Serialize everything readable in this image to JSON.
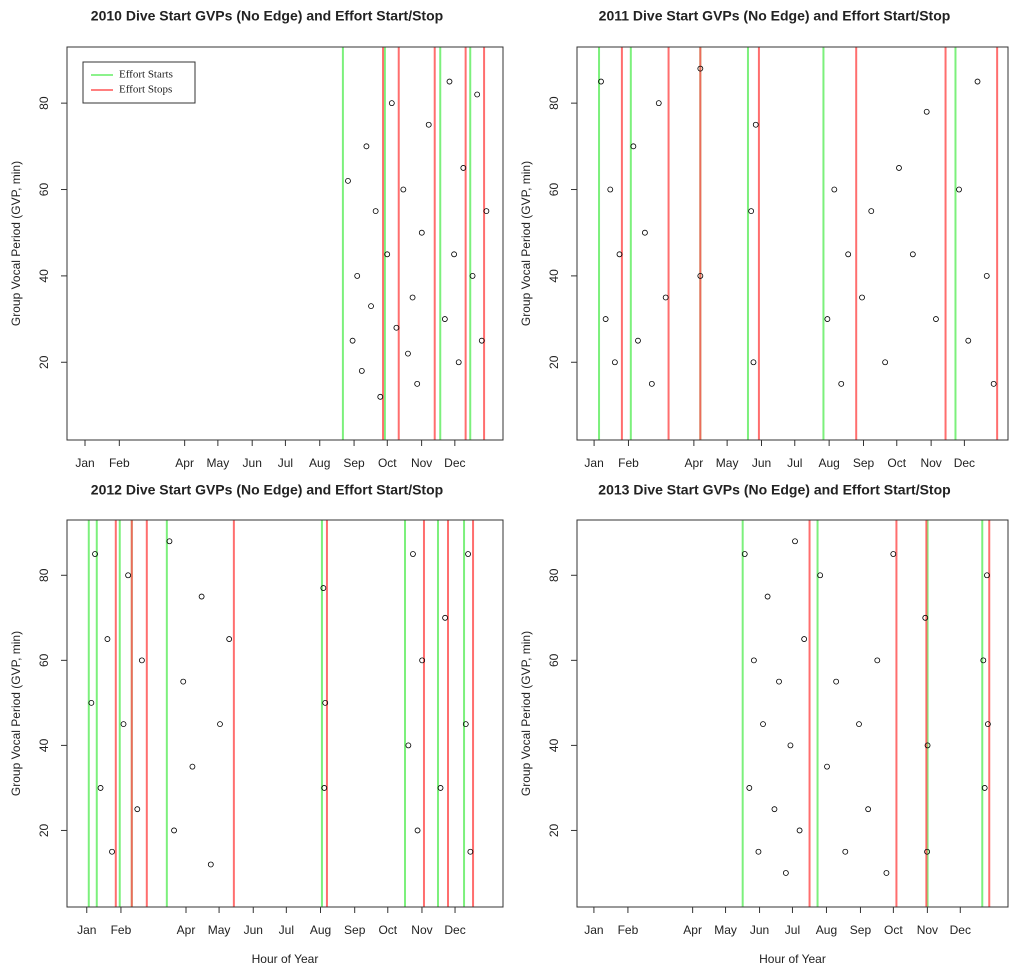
{
  "chart_data": [
    {
      "type": "scatter",
      "title": "2010 Dive Start GVPs (No Edge) and Effort Start/Stop",
      "y_label": "Group Vocal Period (GVP, min)",
      "xlim": [
        -390,
        9060
      ],
      "ylim": [
        2,
        93
      ],
      "xticks": [
        {
          "value": 0,
          "label": "Jan"
        },
        {
          "value": 744,
          "label": "Feb"
        },
        {
          "value": 2160,
          "label": "Apr"
        },
        {
          "value": 2880,
          "label": "May"
        },
        {
          "value": 3624,
          "label": "Jun"
        },
        {
          "value": 4344,
          "label": "Jul"
        },
        {
          "value": 5088,
          "label": "Aug"
        },
        {
          "value": 5832,
          "label": "Sep"
        },
        {
          "value": 6552,
          "label": "Oct"
        },
        {
          "value": 7296,
          "label": "Nov"
        },
        {
          "value": 8016,
          "label": "Dec"
        }
      ],
      "yticks": [
        20,
        40,
        60,
        80
      ],
      "legend": "top-left",
      "vlines": [
        {
          "name": "Effort Starts",
          "color": "#66ee66",
          "x": [
            5590,
            6500,
            7700,
            8350
          ]
        },
        {
          "name": "Effort Stops",
          "color": "#ff5555",
          "x": [
            6460,
            6800,
            7580,
            8250,
            8650
          ]
        }
      ],
      "points": {
        "color": "#000000",
        "x": [
          5700,
          5800,
          5900,
          6000,
          6100,
          6200,
          6300,
          6400,
          6550,
          6650,
          6750,
          6900,
          7000,
          7100,
          7200,
          7300,
          7450,
          7800,
          7900,
          8000,
          8100,
          8200,
          8400,
          8500,
          8600,
          8700
        ],
        "y": [
          62,
          25,
          40,
          18,
          70,
          33,
          55,
          12,
          45,
          80,
          28,
          60,
          22,
          35,
          15,
          50,
          75,
          30,
          85,
          45,
          20,
          65,
          40,
          82,
          25,
          55
        ]
      }
    },
    {
      "type": "scatter",
      "title": "2011 Dive Start GVPs (No Edge) and Effort Start/Stop",
      "y_label": "Group Vocal Period (GVP, min)",
      "xlim": [
        -370,
        8960
      ],
      "ylim": [
        2,
        93
      ],
      "xticks": [
        {
          "value": 0,
          "label": "Jan"
        },
        {
          "value": 744,
          "label": "Feb"
        },
        {
          "value": 2160,
          "label": "Apr"
        },
        {
          "value": 2880,
          "label": "May"
        },
        {
          "value": 3624,
          "label": "Jun"
        },
        {
          "value": 4344,
          "label": "Jul"
        },
        {
          "value": 5088,
          "label": "Aug"
        },
        {
          "value": 5832,
          "label": "Sep"
        },
        {
          "value": 6552,
          "label": "Oct"
        },
        {
          "value": 7296,
          "label": "Nov"
        },
        {
          "value": 8016,
          "label": "Dec"
        }
      ],
      "yticks": [
        20,
        40,
        60,
        80
      ],
      "vlines": [
        {
          "color": "#66ee66",
          "x": [
            107,
            795,
            2300,
            3331,
            4965,
            7823
          ]
        },
        {
          "color": "#ff5555",
          "x": [
            602,
            1612,
            2300,
            3568,
            5674,
            7608,
            8725
          ]
        }
      ],
      "points": {
        "color": "#000000",
        "x": [
          150,
          250,
          350,
          450,
          550,
          850,
          950,
          1100,
          1250,
          1400,
          1550,
          2300,
          2300,
          3400,
          3450,
          3500,
          5050,
          5200,
          5350,
          5500,
          5800,
          6000,
          6300,
          6600,
          6900,
          7200,
          7400,
          7900,
          8100,
          8300,
          8500,
          8650
        ],
        "y": [
          85,
          30,
          60,
          20,
          45,
          70,
          25,
          50,
          15,
          80,
          35,
          40,
          88,
          55,
          20,
          75,
          30,
          60,
          15,
          45,
          35,
          55,
          20,
          65,
          45,
          78,
          30,
          60,
          25,
          85,
          40,
          15
        ]
      }
    },
    {
      "type": "scatter",
      "title": "2012 Dive Start GVPs (No Edge) and Effort Start/Stop",
      "y_label": "Group Vocal Period (GVP, min)",
      "x_label": "Hour of Year",
      "xlim": [
        -430,
        9060
      ],
      "ylim": [
        2,
        93
      ],
      "xticks": [
        {
          "value": 0,
          "label": "Jan"
        },
        {
          "value": 744,
          "label": "Feb"
        },
        {
          "value": 2160,
          "label": "Apr"
        },
        {
          "value": 2880,
          "label": "May"
        },
        {
          "value": 3624,
          "label": "Jun"
        },
        {
          "value": 4344,
          "label": "Jul"
        },
        {
          "value": 5088,
          "label": "Aug"
        },
        {
          "value": 5832,
          "label": "Sep"
        },
        {
          "value": 6552,
          "label": "Oct"
        },
        {
          "value": 7296,
          "label": "Nov"
        },
        {
          "value": 8016,
          "label": "Dec"
        }
      ],
      "yticks": [
        20,
        40,
        60,
        80
      ],
      "vlines": [
        {
          "color": "#66ee66",
          "x": [
            44,
            218,
            718,
            980,
            1743,
            5119,
            6927,
            7645,
            8212
          ]
        },
        {
          "color": "#ff5555",
          "x": [
            632,
            980,
            1307,
            3202,
            5228,
            7340,
            7863,
            8408
          ]
        }
      ],
      "points": {
        "color": "#000000",
        "x": [
          100,
          180,
          300,
          450,
          550,
          800,
          900,
          1100,
          1200,
          1800,
          1900,
          2100,
          2300,
          2500,
          2700,
          2900,
          3100,
          5150,
          5170,
          5190,
          7000,
          7100,
          7200,
          7300,
          7700,
          7800,
          8250,
          8300,
          8350
        ],
        "y": [
          50,
          85,
          30,
          65,
          15,
          45,
          80,
          25,
          60,
          88,
          20,
          55,
          35,
          75,
          12,
          45,
          65,
          77,
          30,
          50,
          40,
          85,
          20,
          60,
          30,
          70,
          45,
          85,
          15
        ]
      }
    },
    {
      "type": "scatter",
      "title": "2013 Dive Start GVPs (No Edge) and Effort Start/Stop",
      "y_label": "Group Vocal Period (GVP, min)",
      "x_label": "Hour of Year",
      "xlim": [
        -370,
        9060
      ],
      "ylim": [
        2,
        93
      ],
      "xticks": [
        {
          "value": 0,
          "label": "Jan"
        },
        {
          "value": 744,
          "label": "Feb"
        },
        {
          "value": 2160,
          "label": "Apr"
        },
        {
          "value": 2880,
          "label": "May"
        },
        {
          "value": 3624,
          "label": "Jun"
        },
        {
          "value": 4344,
          "label": "Jul"
        },
        {
          "value": 5088,
          "label": "Aug"
        },
        {
          "value": 5832,
          "label": "Sep"
        },
        {
          "value": 6552,
          "label": "Oct"
        },
        {
          "value": 7296,
          "label": "Nov"
        },
        {
          "value": 8016,
          "label": "Dec"
        }
      ],
      "yticks": [
        20,
        40,
        60,
        80
      ],
      "vlines": [
        {
          "color": "#66ee66",
          "x": [
            3255,
            4893,
            7300,
            8497
          ]
        },
        {
          "color": "#ff5555",
          "x": [
            4718,
            6619,
            7274,
            8650
          ]
        }
      ],
      "points": {
        "color": "#000000",
        "x": [
          3300,
          3400,
          3500,
          3600,
          3700,
          3800,
          3950,
          4050,
          4200,
          4300,
          4400,
          4500,
          4600,
          4950,
          5100,
          5300,
          5500,
          5800,
          6000,
          6200,
          6400,
          6550,
          7250,
          7300,
          7290,
          8520,
          8550,
          8600,
          8620
        ],
        "y": [
          85,
          30,
          60,
          15,
          45,
          75,
          25,
          55,
          10,
          40,
          88,
          20,
          65,
          80,
          35,
          55,
          15,
          45,
          25,
          60,
          10,
          85,
          70,
          40,
          15,
          60,
          30,
          80,
          45
        ]
      }
    }
  ]
}
